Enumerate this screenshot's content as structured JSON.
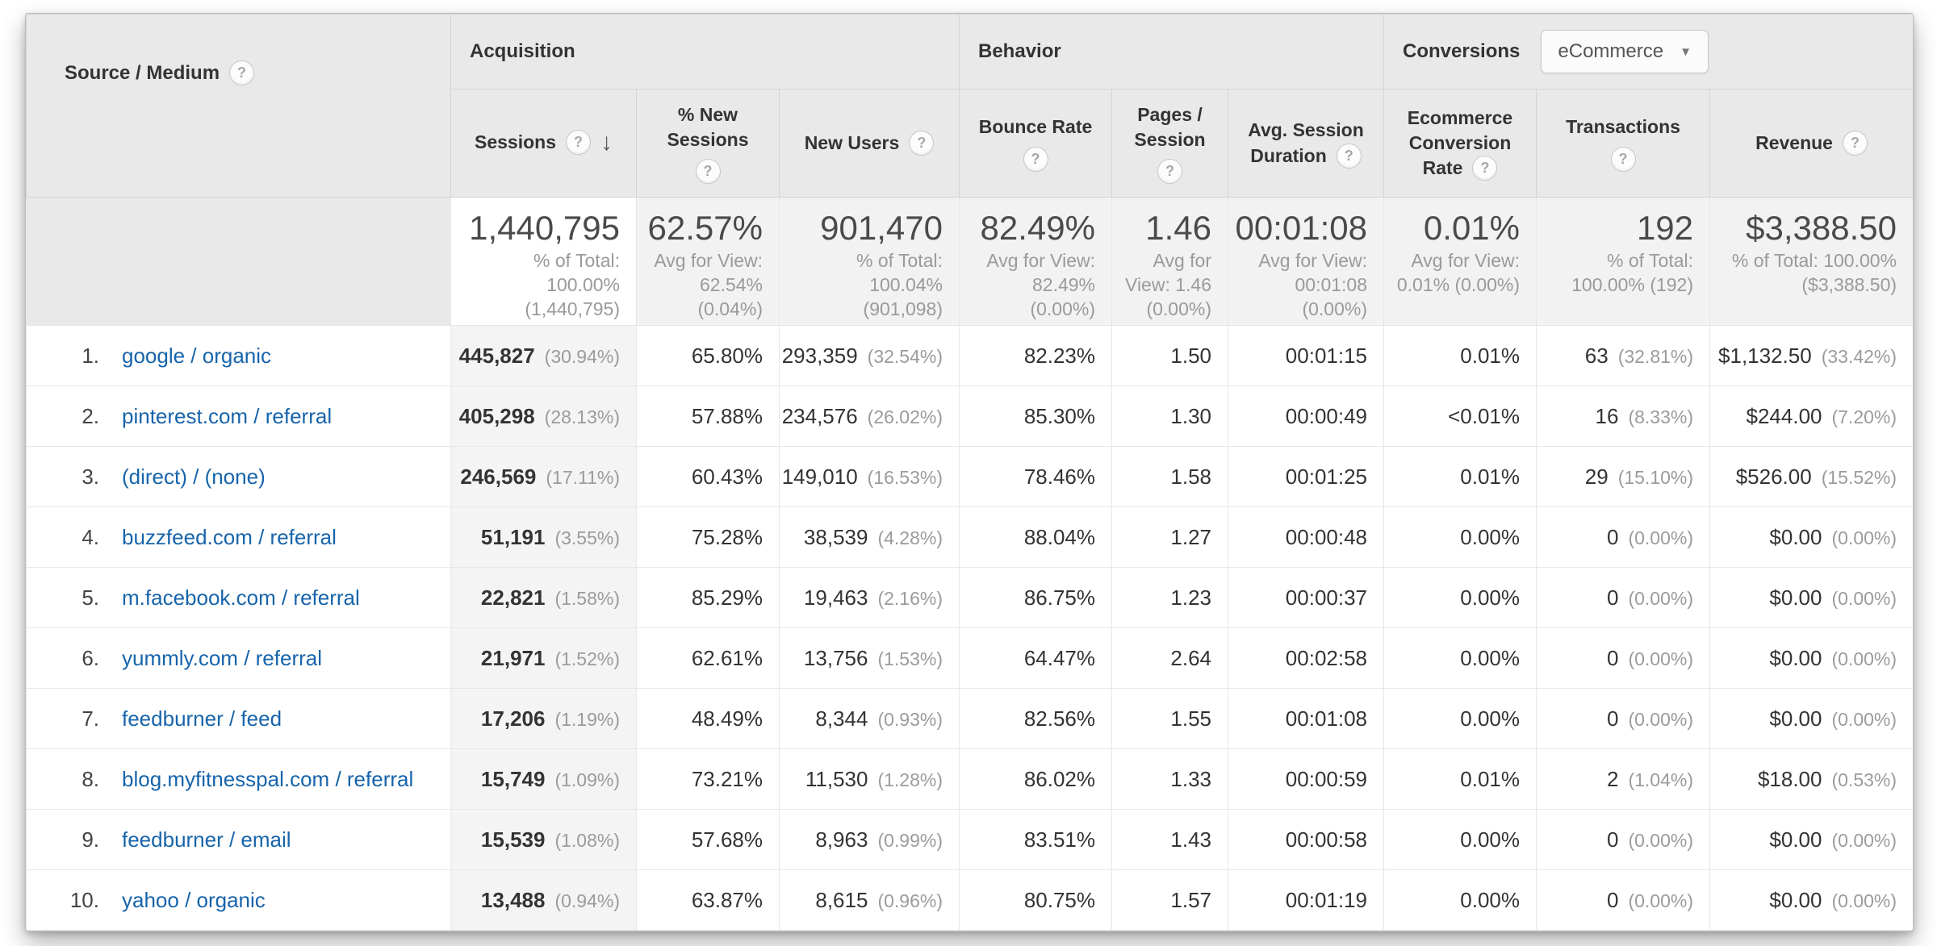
{
  "table": {
    "help_glyph": "?",
    "sort_glyph": "↓",
    "dimension_header": {
      "label": "Source / Medium"
    },
    "groups": [
      {
        "label": "Acquisition"
      },
      {
        "label": "Behavior"
      },
      {
        "label": "Conversions",
        "selector_value": "eCommerce",
        "caret_glyph": "▼"
      }
    ],
    "columns": [
      {
        "label": "Sessions",
        "sorted": "descending"
      },
      {
        "label": "% New Sessions"
      },
      {
        "label": "New Users"
      },
      {
        "label": "Bounce Rate"
      },
      {
        "label": "Pages / Session"
      },
      {
        "label": "Avg. Session Duration"
      },
      {
        "label": "Ecommerce Conversion Rate"
      },
      {
        "label": "Transactions"
      },
      {
        "label": "Revenue"
      }
    ],
    "totals": {
      "sessions": {
        "value": "1,440,795",
        "note": "% of Total: 100.00% (1,440,795)"
      },
      "new_sessions": {
        "value": "62.57%",
        "note": "Avg for View: 62.54% (0.04%)"
      },
      "new_users": {
        "value": "901,470",
        "note": "% of Total: 100.04% (901,098)"
      },
      "bounce": {
        "value": "82.49%",
        "note": "Avg for View: 82.49% (0.00%)"
      },
      "pages": {
        "value": "1.46",
        "note": "Avg for View: 1.46 (0.00%)"
      },
      "duration": {
        "value": "00:01:08",
        "note": "Avg for View: 00:01:08 (0.00%)"
      },
      "ecr": {
        "value": "0.01%",
        "note": "Avg for View: 0.01% (0.00%)"
      },
      "transactions": {
        "value": "192",
        "note": "% of Total: 100.00% (192)"
      },
      "revenue": {
        "value": "$3,388.50",
        "note": "% of Total: 100.00% ($3,388.50)"
      }
    },
    "rows": [
      {
        "rank": "1.",
        "source": "google / organic",
        "sessions": "445,827",
        "sessions_pct": "(30.94%)",
        "new_sessions": "65.80%",
        "new_users": "293,359",
        "new_users_pct": "(32.54%)",
        "bounce": "82.23%",
        "pages": "1.50",
        "duration": "00:01:15",
        "ecr": "0.01%",
        "transactions": "63",
        "transactions_pct": "(32.81%)",
        "revenue": "$1,132.50",
        "revenue_pct": "(33.42%)"
      },
      {
        "rank": "2.",
        "source": "pinterest.com / referral",
        "sessions": "405,298",
        "sessions_pct": "(28.13%)",
        "new_sessions": "57.88%",
        "new_users": "234,576",
        "new_users_pct": "(26.02%)",
        "bounce": "85.30%",
        "pages": "1.30",
        "duration": "00:00:49",
        "ecr": "<0.01%",
        "transactions": "16",
        "transactions_pct": "(8.33%)",
        "revenue": "$244.00",
        "revenue_pct": "(7.20%)"
      },
      {
        "rank": "3.",
        "source": "(direct) / (none)",
        "sessions": "246,569",
        "sessions_pct": "(17.11%)",
        "new_sessions": "60.43%",
        "new_users": "149,010",
        "new_users_pct": "(16.53%)",
        "bounce": "78.46%",
        "pages": "1.58",
        "duration": "00:01:25",
        "ecr": "0.01%",
        "transactions": "29",
        "transactions_pct": "(15.10%)",
        "revenue": "$526.00",
        "revenue_pct": "(15.52%)"
      },
      {
        "rank": "4.",
        "source": "buzzfeed.com / referral",
        "sessions": "51,191",
        "sessions_pct": "(3.55%)",
        "new_sessions": "75.28%",
        "new_users": "38,539",
        "new_users_pct": "(4.28%)",
        "bounce": "88.04%",
        "pages": "1.27",
        "duration": "00:00:48",
        "ecr": "0.00%",
        "transactions": "0",
        "transactions_pct": "(0.00%)",
        "revenue": "$0.00",
        "revenue_pct": "(0.00%)"
      },
      {
        "rank": "5.",
        "source": "m.facebook.com / referral",
        "sessions": "22,821",
        "sessions_pct": "(1.58%)",
        "new_sessions": "85.29%",
        "new_users": "19,463",
        "new_users_pct": "(2.16%)",
        "bounce": "86.75%",
        "pages": "1.23",
        "duration": "00:00:37",
        "ecr": "0.00%",
        "transactions": "0",
        "transactions_pct": "(0.00%)",
        "revenue": "$0.00",
        "revenue_pct": "(0.00%)"
      },
      {
        "rank": "6.",
        "source": "yummly.com / referral",
        "sessions": "21,971",
        "sessions_pct": "(1.52%)",
        "new_sessions": "62.61%",
        "new_users": "13,756",
        "new_users_pct": "(1.53%)",
        "bounce": "64.47%",
        "pages": "2.64",
        "duration": "00:02:58",
        "ecr": "0.00%",
        "transactions": "0",
        "transactions_pct": "(0.00%)",
        "revenue": "$0.00",
        "revenue_pct": "(0.00%)"
      },
      {
        "rank": "7.",
        "source": "feedburner / feed",
        "sessions": "17,206",
        "sessions_pct": "(1.19%)",
        "new_sessions": "48.49%",
        "new_users": "8,344",
        "new_users_pct": "(0.93%)",
        "bounce": "82.56%",
        "pages": "1.55",
        "duration": "00:01:08",
        "ecr": "0.00%",
        "transactions": "0",
        "transactions_pct": "(0.00%)",
        "revenue": "$0.00",
        "revenue_pct": "(0.00%)"
      },
      {
        "rank": "8.",
        "source": "blog.myfitnesspal.com / referral",
        "sessions": "15,749",
        "sessions_pct": "(1.09%)",
        "new_sessions": "73.21%",
        "new_users": "11,530",
        "new_users_pct": "(1.28%)",
        "bounce": "86.02%",
        "pages": "1.33",
        "duration": "00:00:59",
        "ecr": "0.01%",
        "transactions": "2",
        "transactions_pct": "(1.04%)",
        "revenue": "$18.00",
        "revenue_pct": "(0.53%)"
      },
      {
        "rank": "9.",
        "source": "feedburner / email",
        "sessions": "15,539",
        "sessions_pct": "(1.08%)",
        "new_sessions": "57.68%",
        "new_users": "8,963",
        "new_users_pct": "(0.99%)",
        "bounce": "83.51%",
        "pages": "1.43",
        "duration": "00:00:58",
        "ecr": "0.00%",
        "transactions": "0",
        "transactions_pct": "(0.00%)",
        "revenue": "$0.00",
        "revenue_pct": "(0.00%)"
      },
      {
        "rank": "10.",
        "source": "yahoo / organic",
        "sessions": "13,488",
        "sessions_pct": "(0.94%)",
        "new_sessions": "63.87%",
        "new_users": "8,615",
        "new_users_pct": "(0.96%)",
        "bounce": "80.75%",
        "pages": "1.57",
        "duration": "00:01:19",
        "ecr": "0.00%",
        "transactions": "0",
        "transactions_pct": "(0.00%)",
        "revenue": "$0.00",
        "revenue_pct": "(0.00%)"
      }
    ]
  }
}
